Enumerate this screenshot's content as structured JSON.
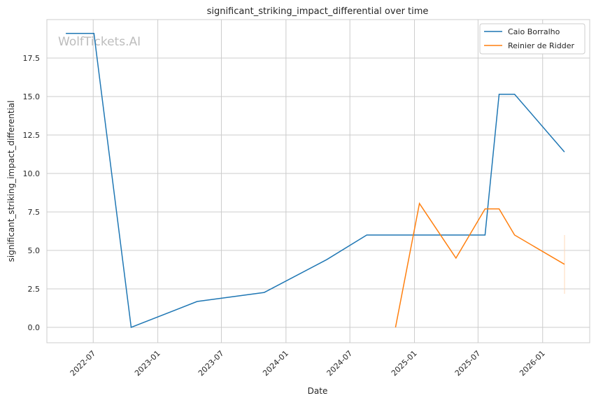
{
  "chart_data": {
    "type": "line",
    "title": "significant_striking_impact_differential over time",
    "xlabel": "Date",
    "ylabel": "significant_striking_impact_differential",
    "watermark": "WolfTickets.AI",
    "xlim": [
      "2022-02-19",
      "2026-05-15"
    ],
    "ylim": [
      -1.0,
      20.0
    ],
    "grid": true,
    "legend_position": "top-right",
    "x_ticks": [
      "2022-07",
      "2023-01",
      "2023-07",
      "2024-01",
      "2024-07",
      "2025-01",
      "2025-07",
      "2026-01"
    ],
    "y_ticks": [
      "0.0",
      "2.5",
      "5.0",
      "7.5",
      "10.0",
      "12.5",
      "15.0",
      "17.5"
    ],
    "series": [
      {
        "name": "Caio Borralho",
        "color": "#1f77b4",
        "x": [
          "2022-04-14",
          "2022-07-03",
          "2022-10-17",
          "2023-04-23",
          "2023-10-31",
          "2024-04-26",
          "2024-08-18",
          "2025-07-21",
          "2025-08-30",
          "2025-10-13",
          "2026-03-04"
        ],
        "y": [
          19.1,
          19.1,
          0.0,
          1.68,
          2.27,
          4.4,
          6.0,
          6.0,
          15.15,
          15.15,
          11.4
        ]
      },
      {
        "name": "Reinier de Ridder",
        "color": "#ff7f0e",
        "x": [
          "2024-11-08",
          "2025-01-15",
          "2025-04-29",
          "2025-07-21",
          "2025-08-30",
          "2025-10-13",
          "2026-03-04"
        ],
        "y": [
          0.0,
          8.05,
          4.5,
          7.7,
          7.7,
          6.0,
          4.1
        ]
      }
    ]
  }
}
